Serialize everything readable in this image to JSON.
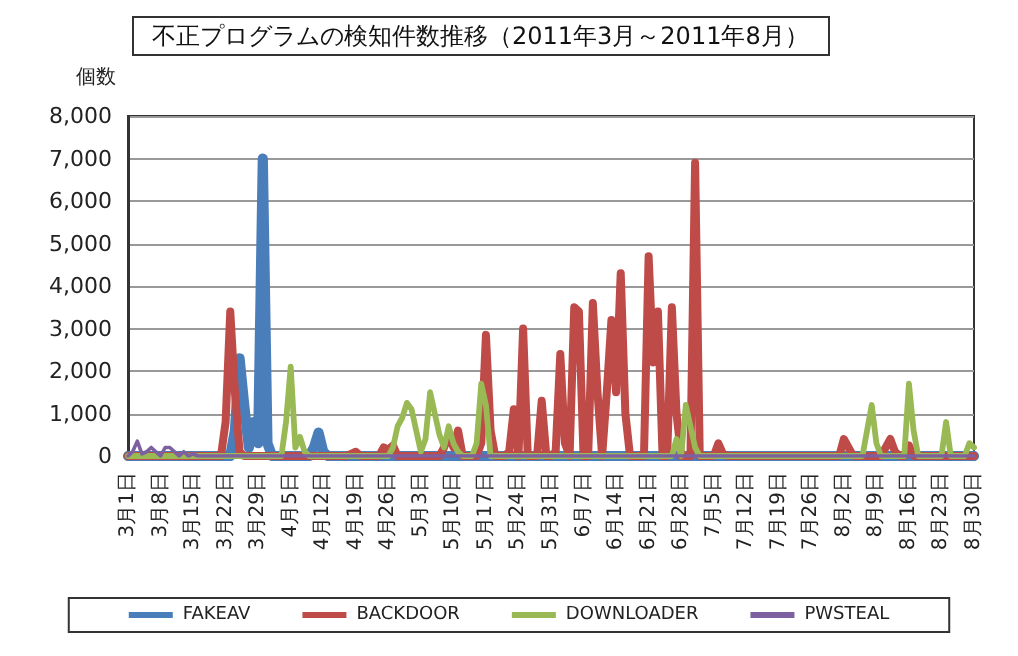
{
  "chart_data": {
    "type": "line",
    "title": "不正プログラムの検知件数推移（2011年3月～2011年8月）",
    "ylabel": "個数",
    "categories": [
      "3月1日",
      null,
      null,
      null,
      null,
      null,
      null,
      "3月8日",
      null,
      null,
      null,
      null,
      null,
      null,
      "3月15日",
      null,
      null,
      null,
      null,
      null,
      null,
      "3月22日",
      null,
      null,
      null,
      null,
      null,
      null,
      "3月29日",
      null,
      null,
      null,
      null,
      null,
      null,
      "4月5日",
      null,
      null,
      null,
      null,
      null,
      null,
      "4月12日",
      null,
      null,
      null,
      null,
      null,
      null,
      "4月19日",
      null,
      null,
      null,
      null,
      null,
      null,
      "4月26日",
      null,
      null,
      null,
      null,
      null,
      null,
      "5月3日",
      null,
      null,
      null,
      null,
      null,
      null,
      "5月10日",
      null,
      null,
      null,
      null,
      null,
      null,
      "5月17日",
      null,
      null,
      null,
      null,
      null,
      null,
      "5月24日",
      null,
      null,
      null,
      null,
      null,
      null,
      "5月31日",
      null,
      null,
      null,
      null,
      null,
      null,
      "6月7日",
      null,
      null,
      null,
      null,
      null,
      null,
      "6月14日",
      null,
      null,
      null,
      null,
      null,
      null,
      "6月21日",
      null,
      null,
      null,
      null,
      null,
      null,
      "6月28日",
      null,
      null,
      null,
      null,
      null,
      null,
      "7月5日",
      null,
      null,
      null,
      null,
      null,
      null,
      "7月12日",
      null,
      null,
      null,
      null,
      null,
      null,
      "7月19日",
      null,
      null,
      null,
      null,
      null,
      null,
      "7月26日",
      null,
      null,
      null,
      null,
      null,
      null,
      "8月2日",
      null,
      null,
      null,
      null,
      null,
      null,
      "8月9日",
      null,
      null,
      null,
      null,
      null,
      null,
      "8月16日",
      null,
      null,
      null,
      null,
      null,
      null,
      "8月23日",
      null,
      null,
      null,
      null,
      null,
      null,
      "8月30日"
    ],
    "series": [
      {
        "name": "FAKEAV",
        "color": "#4a7ebb",
        "values": [
          0,
          0,
          0,
          0,
          0,
          0,
          0,
          0,
          0,
          0,
          0,
          0,
          0,
          0,
          0,
          0,
          0,
          0,
          0,
          0,
          0,
          0,
          0,
          600,
          2300,
          1200,
          200,
          800,
          300,
          7000,
          300,
          0,
          0,
          0,
          0,
          0,
          0,
          0,
          0,
          0,
          200,
          550,
          100,
          0,
          0,
          0,
          0,
          0,
          0,
          0,
          0,
          0,
          0,
          0,
          0,
          0,
          0,
          0,
          0,
          0,
          0,
          0,
          0,
          0,
          0,
          0,
          0,
          0,
          0,
          0,
          0,
          0,
          0,
          0,
          0,
          0,
          0,
          0,
          0,
          0,
          0,
          0,
          0,
          0,
          0,
          0,
          0,
          0,
          0,
          0,
          0,
          0,
          0,
          0,
          0,
          0,
          0,
          0,
          0,
          0,
          0,
          0,
          0,
          0,
          0,
          0,
          0,
          0,
          0,
          0,
          0,
          0,
          0,
          0,
          0,
          0,
          0,
          0,
          0,
          0,
          0,
          0,
          0,
          0,
          0,
          0,
          0,
          0,
          0,
          0,
          0,
          0,
          0,
          0,
          0,
          0,
          0,
          0,
          0,
          0,
          0,
          0,
          0,
          0,
          0,
          0,
          0,
          0,
          0,
          0,
          0,
          0,
          0,
          0,
          0,
          0,
          0,
          0,
          0,
          0,
          0,
          0,
          0,
          0,
          0,
          0,
          0,
          0,
          0,
          0,
          0,
          0,
          0,
          0,
          0,
          0,
          0,
          0,
          0,
          0,
          0,
          0,
          0
        ]
      },
      {
        "name": "BACKDOOR",
        "color": "#be4b48",
        "values": [
          0,
          0,
          0,
          0,
          0,
          0,
          0,
          0,
          0,
          0,
          0,
          0,
          0,
          0,
          0,
          0,
          0,
          0,
          0,
          0,
          0,
          800,
          3400,
          1500,
          100,
          0,
          0,
          0,
          0,
          0,
          0,
          0,
          0,
          0,
          0,
          0,
          0,
          0,
          0,
          0,
          0,
          0,
          0,
          0,
          0,
          0,
          0,
          0,
          50,
          100,
          0,
          0,
          0,
          0,
          0,
          200,
          150,
          250,
          0,
          0,
          0,
          0,
          0,
          0,
          0,
          0,
          0,
          0,
          200,
          500,
          200,
          600,
          0,
          0,
          0,
          0,
          300,
          2850,
          600,
          0,
          0,
          0,
          100,
          1100,
          0,
          3000,
          0,
          0,
          0,
          1300,
          0,
          0,
          100,
          2400,
          300,
          0,
          3500,
          3400,
          0,
          0,
          3600,
          1500,
          0,
          1500,
          3200,
          1500,
          4300,
          1000,
          0,
          0,
          0,
          0,
          4700,
          2200,
          3400,
          0,
          0,
          3500,
          1000,
          0,
          0,
          0,
          6900,
          0,
          0,
          0,
          0,
          300,
          50,
          0,
          0,
          0,
          0,
          0,
          0,
          0,
          0,
          0,
          0,
          0,
          0,
          0,
          0,
          0,
          0,
          0,
          0,
          0,
          0,
          0,
          0,
          0,
          0,
          0,
          400,
          200,
          0,
          0,
          0,
          0,
          0,
          0,
          0,
          200,
          400,
          100,
          0,
          0,
          250,
          0,
          0,
          0,
          0,
          0,
          0,
          0,
          0,
          0,
          0,
          0,
          0,
          0,
          0
        ]
      },
      {
        "name": "DOWNLOADER",
        "color": "#98b954",
        "values": [
          0,
          0,
          0,
          0,
          0,
          0,
          0,
          0,
          0,
          0,
          0,
          0,
          0,
          0,
          0,
          0,
          0,
          0,
          0,
          0,
          0,
          0,
          0,
          0,
          0,
          0,
          0,
          0,
          0,
          0,
          0,
          0,
          0,
          0,
          800,
          2100,
          200,
          450,
          100,
          0,
          0,
          0,
          0,
          0,
          0,
          0,
          0,
          0,
          0,
          0,
          0,
          0,
          0,
          0,
          0,
          0,
          0,
          200,
          700,
          900,
          1250,
          1100,
          600,
          100,
          400,
          1500,
          1000,
          500,
          200,
          700,
          300,
          100,
          0,
          0,
          0,
          300,
          1700,
          1200,
          0,
          0,
          0,
          0,
          0,
          0,
          0,
          0,
          0,
          0,
          0,
          0,
          0,
          0,
          0,
          0,
          0,
          0,
          0,
          0,
          0,
          0,
          0,
          0,
          0,
          0,
          0,
          0,
          0,
          0,
          0,
          0,
          0,
          0,
          0,
          0,
          0,
          0,
          0,
          0,
          400,
          0,
          1200,
          700,
          200,
          0,
          0,
          0,
          0,
          0,
          0,
          0,
          0,
          0,
          0,
          0,
          0,
          0,
          0,
          0,
          0,
          0,
          0,
          0,
          0,
          0,
          0,
          0,
          0,
          0,
          0,
          0,
          0,
          0,
          0,
          0,
          0,
          0,
          0,
          0,
          0,
          600,
          1200,
          300,
          0,
          0,
          0,
          0,
          0,
          0,
          1700,
          600,
          0,
          0,
          0,
          0,
          0,
          0,
          800,
          0,
          0,
          0,
          0,
          300,
          200
        ]
      },
      {
        "name": "PWSTEAL",
        "color": "#7d60a0",
        "values": [
          0,
          100,
          350,
          50,
          100,
          200,
          100,
          0,
          200,
          200,
          100,
          0,
          100,
          0,
          50,
          0,
          0,
          0,
          0,
          0,
          0,
          0,
          0,
          0,
          0,
          0,
          0,
          0,
          0,
          0,
          0,
          0,
          0,
          0,
          0,
          0,
          0,
          0,
          0,
          0,
          0,
          0,
          0,
          0,
          0,
          0,
          0,
          0,
          0,
          0,
          0,
          0,
          0,
          0,
          0,
          0,
          0,
          0,
          0,
          0,
          0,
          0,
          0,
          0,
          0,
          0,
          0,
          0,
          0,
          0,
          0,
          0,
          0,
          0,
          0,
          0,
          0,
          0,
          0,
          0,
          0,
          0,
          0,
          0,
          0,
          0,
          0,
          0,
          0,
          0,
          0,
          0,
          0,
          0,
          0,
          0,
          0,
          0,
          0,
          0,
          0,
          0,
          0,
          0,
          0,
          0,
          0,
          0,
          0,
          0,
          0,
          0,
          0,
          0,
          0,
          0,
          0,
          0,
          0,
          0,
          0,
          0,
          0,
          0,
          0,
          0,
          0,
          0,
          0,
          0,
          0,
          0,
          0,
          0,
          0,
          0,
          0,
          0,
          0,
          0,
          0,
          0,
          0,
          0,
          0,
          0,
          0,
          0,
          0,
          0,
          0,
          0,
          0,
          0,
          0,
          0,
          0,
          0,
          0,
          0,
          0,
          0,
          0,
          0,
          0,
          0,
          0,
          0,
          0,
          0,
          0,
          0,
          0,
          0,
          0,
          0,
          0,
          0,
          0,
          0,
          0,
          0,
          0
        ]
      }
    ],
    "ylim": [
      0,
      8000
    ],
    "yticks": [
      0,
      {
        "value": 1000,
        "label": "1,000"
      },
      {
        "value": 2000,
        "label": "2,000"
      },
      {
        "value": 3000,
        "label": "3,000"
      },
      {
        "value": 4000,
        "label": "4,000"
      },
      {
        "value": 5000,
        "label": "5,000"
      },
      {
        "value": 6000,
        "label": "6,000"
      },
      {
        "value": 7000,
        "label": "7,000"
      },
      {
        "value": 8000,
        "label": "8,000"
      }
    ],
    "grid": "y",
    "legend": "bottom",
    "marker": "none",
    "line_style": "solid"
  }
}
